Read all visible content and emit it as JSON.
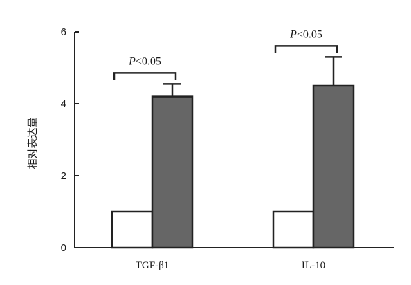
{
  "chart_data": {
    "type": "bar",
    "title": "",
    "xlabel": "",
    "ylabel": "相对表达量",
    "categories": [
      "TGF-β1",
      "IL-10"
    ],
    "series": [
      {
        "color": "#ffffff",
        "values": [
          1.0,
          1.0
        ]
      },
      {
        "color": "#666666",
        "values": [
          4.2,
          4.5
        ],
        "error": [
          0.35,
          0.8
        ]
      }
    ],
    "ylim": [
      0,
      6
    ],
    "yticks": [
      0,
      2,
      4,
      6
    ],
    "grid": false,
    "legend": "none",
    "annotations": [
      {
        "category": "TGF-β1",
        "p_symbol": "P",
        "p_rest": "<0.05"
      },
      {
        "category": "IL-10",
        "p_symbol": "P",
        "p_rest": "<0.05"
      }
    ]
  }
}
